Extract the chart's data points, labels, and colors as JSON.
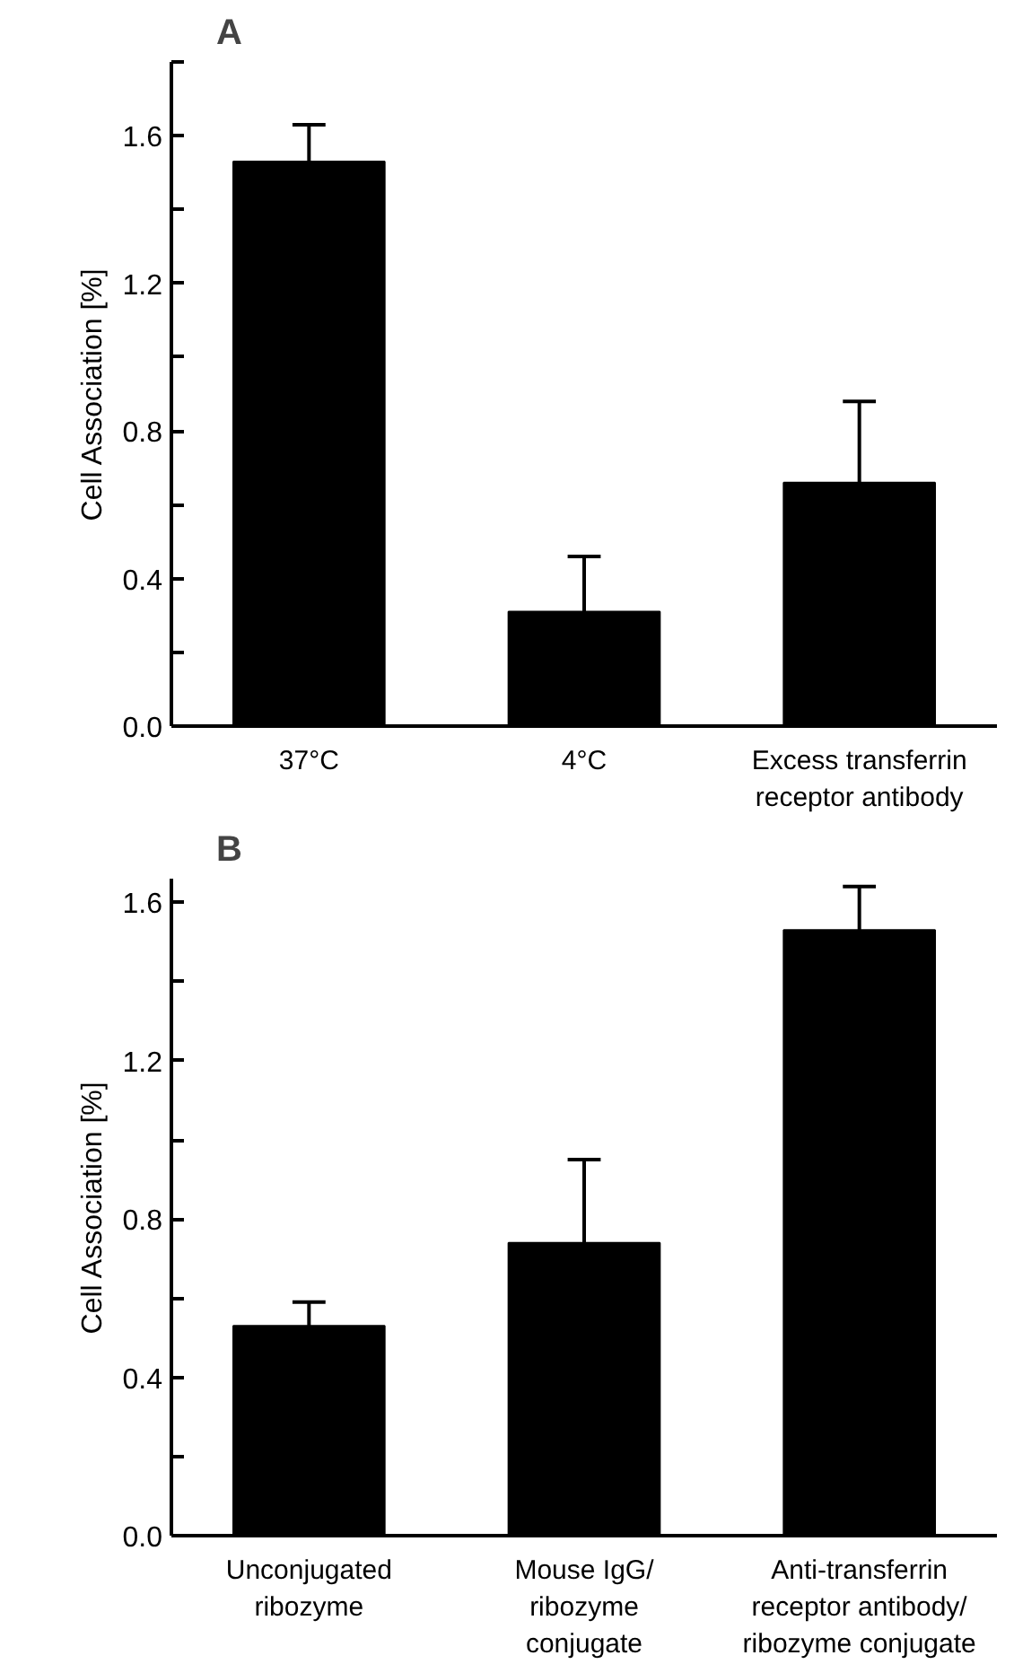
{
  "chart_data": [
    {
      "type": "bar",
      "title": "A",
      "ylabel": "Cell Association [%]",
      "categories": [
        "37°C",
        "4°C",
        "Excess transferrin\nreceptor antibody"
      ],
      "values": [
        1.53,
        0.31,
        0.66
      ],
      "errors": [
        [
          1.53,
          1.63
        ],
        [
          0.31,
          0.46
        ],
        [
          0.66,
          0.88
        ]
      ],
      "color": "#000000",
      "ylim": [
        0,
        1.8
      ],
      "yticks": [
        {
          "value": 0,
          "label": "0.0"
        },
        {
          "value": 0.2,
          "label": null
        },
        {
          "value": 0.4,
          "label": "0.4"
        },
        {
          "value": 0.6,
          "label": null
        },
        {
          "value": 0.8,
          "label": "0.8"
        },
        {
          "value": 1.0,
          "label": null
        },
        {
          "value": 1.2,
          "label": "1.2"
        },
        {
          "value": 1.4,
          "label": null
        },
        {
          "value": 1.6,
          "label": "1.6"
        },
        {
          "value": 1.8,
          "label": null
        }
      ],
      "grid": false
    },
    {
      "type": "bar",
      "title": "B",
      "ylabel": "Cell Association [%]",
      "categories": [
        "Unconjugated\nribozyme",
        "Mouse IgG/\nribozyme\nconjugate",
        "Anti-transferrin\nreceptor antibody/\nribozyme conjugate"
      ],
      "values": [
        0.53,
        0.74,
        1.53
      ],
      "errors": [
        [
          0.53,
          0.59
        ],
        [
          0.74,
          0.95
        ],
        [
          1.53,
          1.64
        ]
      ],
      "color": "#000000",
      "ylim": [
        0,
        1.66
      ],
      "yticks": [
        {
          "value": 0,
          "label": "0.0"
        },
        {
          "value": 0.2,
          "label": null
        },
        {
          "value": 0.4,
          "label": "0.4"
        },
        {
          "value": 0.6,
          "label": null
        },
        {
          "value": 0.8,
          "label": "0.8"
        },
        {
          "value": 1.0,
          "label": null
        },
        {
          "value": 1.2,
          "label": "1.2"
        },
        {
          "value": 1.4,
          "label": null
        },
        {
          "value": 1.6,
          "label": "1.6"
        }
      ],
      "grid": false
    }
  ]
}
